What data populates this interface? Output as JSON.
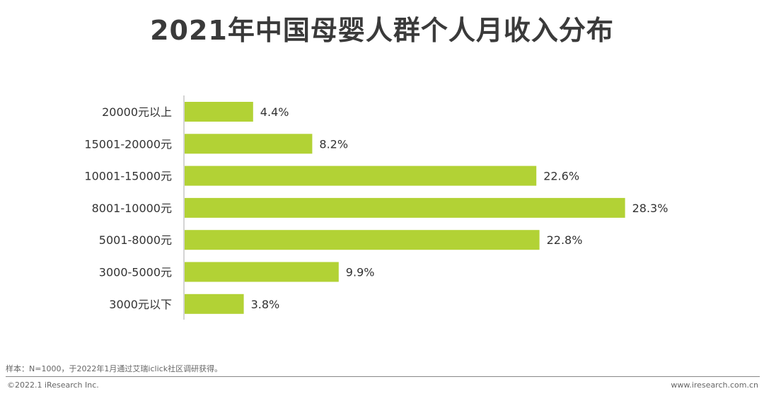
{
  "chart_data": {
    "type": "bar",
    "orientation": "horizontal",
    "title": "2021年中国母婴人群个人月收入分布",
    "categories": [
      "20000元以上",
      "15001-20000元",
      "10001-15000元",
      "8001-10000元",
      "5001-8000元",
      "3000-5000元",
      "3000元以下"
    ],
    "values": [
      4.4,
      8.2,
      22.6,
      28.3,
      22.8,
      9.9,
      3.8
    ],
    "value_labels": [
      "4.4%",
      "8.2%",
      "22.6%",
      "28.3%",
      "22.8%",
      "9.9%",
      "3.8%"
    ],
    "xlim": [
      0,
      30
    ],
    "grid": false,
    "legend": "none",
    "bar_color": "#b2d235"
  },
  "footer": {
    "note": "样本：N=1000，于2022年1月通过艾瑞iclick社区调研获得。",
    "copyright": "©2022.1 iResearch Inc.",
    "website": "www.iresearch.com.cn"
  }
}
